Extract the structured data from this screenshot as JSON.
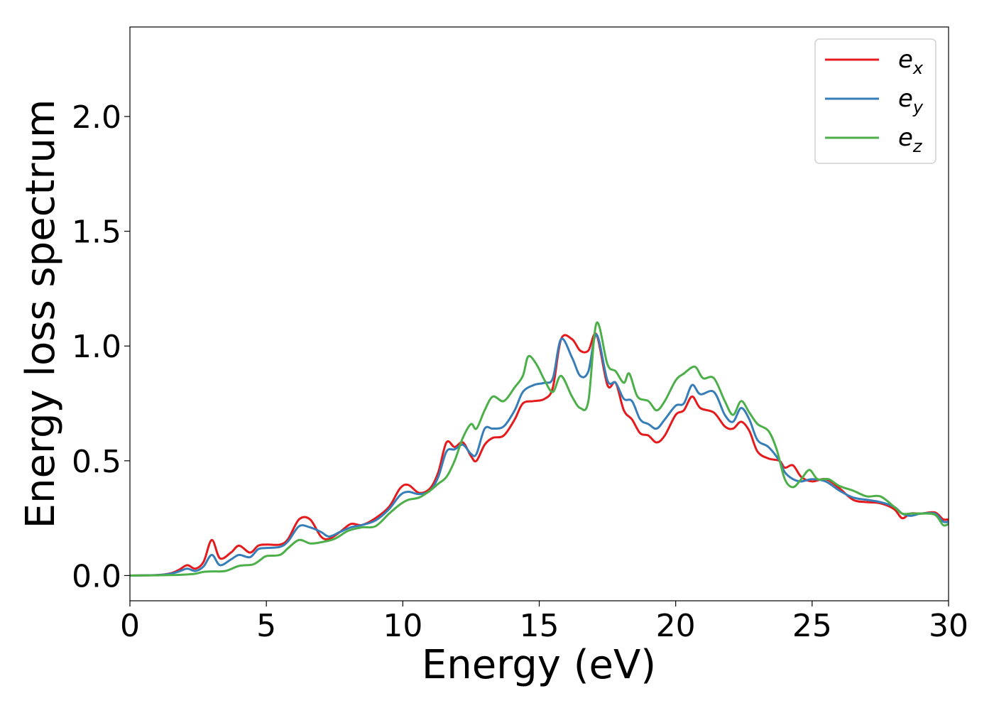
{
  "chart_data": {
    "type": "line",
    "title": "",
    "xlabel": "Energy (eV)",
    "ylabel": "Energy loss spectrum",
    "xlim": [
      0,
      30
    ],
    "ylim": [
      -0.11,
      2.39
    ],
    "xticks": [
      0,
      5,
      10,
      15,
      20,
      25,
      30
    ],
    "xtick_labels": [
      "0",
      "5",
      "10",
      "15",
      "20",
      "25",
      "30"
    ],
    "yticks": [
      0.0,
      0.5,
      1.0,
      1.5,
      2.0
    ],
    "ytick_labels": [
      "0.0",
      "0.5",
      "1.0",
      "1.5",
      "2.0"
    ],
    "grid": false,
    "legend_position": "top-right",
    "series": [
      {
        "name": "e",
        "subscript": "x",
        "color": "#e41a1c",
        "points": [
          [
            0,
            0
          ],
          [
            1,
            0.002
          ],
          [
            1.5,
            0.01
          ],
          [
            1.8,
            0.025
          ],
          [
            2.1,
            0.045
          ],
          [
            2.4,
            0.03
          ],
          [
            2.7,
            0.06
          ],
          [
            3.0,
            0.155
          ],
          [
            3.3,
            0.075
          ],
          [
            3.7,
            0.1
          ],
          [
            4.0,
            0.13
          ],
          [
            4.4,
            0.1
          ],
          [
            4.7,
            0.13
          ],
          [
            5.0,
            0.135
          ],
          [
            5.5,
            0.135
          ],
          [
            5.8,
            0.16
          ],
          [
            6.2,
            0.245
          ],
          [
            6.6,
            0.245
          ],
          [
            7.0,
            0.17
          ],
          [
            7.3,
            0.16
          ],
          [
            7.7,
            0.19
          ],
          [
            8.1,
            0.225
          ],
          [
            8.5,
            0.22
          ],
          [
            9.0,
            0.25
          ],
          [
            9.5,
            0.3
          ],
          [
            9.9,
            0.38
          ],
          [
            10.2,
            0.395
          ],
          [
            10.6,
            0.36
          ],
          [
            11.0,
            0.38
          ],
          [
            11.3,
            0.45
          ],
          [
            11.6,
            0.58
          ],
          [
            11.9,
            0.56
          ],
          [
            12.2,
            0.58
          ],
          [
            12.5,
            0.52
          ],
          [
            12.7,
            0.5
          ],
          [
            13.0,
            0.57
          ],
          [
            13.3,
            0.6
          ],
          [
            13.7,
            0.61
          ],
          [
            14.1,
            0.68
          ],
          [
            14.4,
            0.75
          ],
          [
            14.8,
            0.76
          ],
          [
            15.2,
            0.77
          ],
          [
            15.5,
            0.82
          ],
          [
            15.8,
            1.03
          ],
          [
            16.2,
            1.03
          ],
          [
            16.5,
            0.98
          ],
          [
            16.8,
            0.98
          ],
          [
            17.1,
            1.05
          ],
          [
            17.5,
            0.83
          ],
          [
            17.8,
            0.84
          ],
          [
            18.1,
            0.72
          ],
          [
            18.4,
            0.68
          ],
          [
            18.7,
            0.62
          ],
          [
            19.0,
            0.61
          ],
          [
            19.3,
            0.58
          ],
          [
            19.6,
            0.61
          ],
          [
            20.0,
            0.7
          ],
          [
            20.3,
            0.72
          ],
          [
            20.6,
            0.78
          ],
          [
            20.9,
            0.73
          ],
          [
            21.4,
            0.71
          ],
          [
            21.8,
            0.65
          ],
          [
            22.1,
            0.64
          ],
          [
            22.4,
            0.67
          ],
          [
            22.7,
            0.63
          ],
          [
            23.0,
            0.54
          ],
          [
            23.4,
            0.51
          ],
          [
            23.8,
            0.5
          ],
          [
            24.0,
            0.47
          ],
          [
            24.3,
            0.48
          ],
          [
            24.6,
            0.43
          ],
          [
            25.0,
            0.41
          ],
          [
            25.5,
            0.42
          ],
          [
            26.0,
            0.38
          ],
          [
            26.5,
            0.33
          ],
          [
            27.0,
            0.32
          ],
          [
            27.5,
            0.315
          ],
          [
            28.0,
            0.29
          ],
          [
            28.3,
            0.25
          ],
          [
            28.6,
            0.27
          ],
          [
            29.0,
            0.27
          ],
          [
            29.5,
            0.275
          ],
          [
            29.8,
            0.245
          ],
          [
            30.0,
            0.245
          ]
        ]
      },
      {
        "name": "e",
        "subscript": "y",
        "color": "#377eb8",
        "points": [
          [
            0,
            0
          ],
          [
            1,
            0.002
          ],
          [
            1.5,
            0.008
          ],
          [
            1.8,
            0.018
          ],
          [
            2.1,
            0.03
          ],
          [
            2.4,
            0.02
          ],
          [
            2.7,
            0.04
          ],
          [
            3.0,
            0.09
          ],
          [
            3.3,
            0.045
          ],
          [
            3.7,
            0.07
          ],
          [
            4.0,
            0.09
          ],
          [
            4.4,
            0.08
          ],
          [
            4.7,
            0.115
          ],
          [
            5.0,
            0.12
          ],
          [
            5.5,
            0.125
          ],
          [
            5.8,
            0.15
          ],
          [
            6.2,
            0.215
          ],
          [
            6.6,
            0.21
          ],
          [
            7.0,
            0.19
          ],
          [
            7.3,
            0.17
          ],
          [
            7.7,
            0.19
          ],
          [
            8.1,
            0.21
          ],
          [
            8.5,
            0.22
          ],
          [
            9.0,
            0.24
          ],
          [
            9.5,
            0.29
          ],
          [
            9.9,
            0.35
          ],
          [
            10.2,
            0.365
          ],
          [
            10.6,
            0.355
          ],
          [
            11.0,
            0.37
          ],
          [
            11.3,
            0.43
          ],
          [
            11.6,
            0.54
          ],
          [
            11.9,
            0.55
          ],
          [
            12.2,
            0.57
          ],
          [
            12.5,
            0.53
          ],
          [
            12.7,
            0.53
          ],
          [
            13.0,
            0.64
          ],
          [
            13.3,
            0.64
          ],
          [
            13.7,
            0.65
          ],
          [
            14.1,
            0.72
          ],
          [
            14.4,
            0.8
          ],
          [
            14.8,
            0.83
          ],
          [
            15.2,
            0.84
          ],
          [
            15.5,
            0.86
          ],
          [
            15.8,
            1.03
          ],
          [
            16.2,
            0.95
          ],
          [
            16.5,
            0.87
          ],
          [
            16.8,
            0.89
          ],
          [
            17.1,
            1.05
          ],
          [
            17.5,
            0.85
          ],
          [
            17.8,
            0.84
          ],
          [
            18.1,
            0.77
          ],
          [
            18.4,
            0.76
          ],
          [
            18.7,
            0.68
          ],
          [
            19.0,
            0.66
          ],
          [
            19.3,
            0.64
          ],
          [
            19.6,
            0.68
          ],
          [
            20.0,
            0.74
          ],
          [
            20.3,
            0.75
          ],
          [
            20.6,
            0.83
          ],
          [
            20.9,
            0.79
          ],
          [
            21.4,
            0.8
          ],
          [
            21.8,
            0.7
          ],
          [
            22.1,
            0.67
          ],
          [
            22.4,
            0.73
          ],
          [
            22.7,
            0.68
          ],
          [
            23.0,
            0.59
          ],
          [
            23.4,
            0.56
          ],
          [
            23.8,
            0.5
          ],
          [
            24.0,
            0.45
          ],
          [
            24.3,
            0.42
          ],
          [
            24.6,
            0.41
          ],
          [
            25.0,
            0.42
          ],
          [
            25.5,
            0.41
          ],
          [
            26.0,
            0.37
          ],
          [
            26.5,
            0.34
          ],
          [
            27.0,
            0.33
          ],
          [
            27.5,
            0.32
          ],
          [
            28.0,
            0.3
          ],
          [
            28.3,
            0.27
          ],
          [
            28.6,
            0.26
          ],
          [
            29.0,
            0.27
          ],
          [
            29.5,
            0.27
          ],
          [
            29.8,
            0.235
          ],
          [
            30.0,
            0.235
          ]
        ]
      },
      {
        "name": "e",
        "subscript": "z",
        "color": "#4daf4a",
        "points": [
          [
            0,
            0
          ],
          [
            1,
            0.001
          ],
          [
            1.5,
            0.002
          ],
          [
            2.0,
            0.004
          ],
          [
            2.4,
            0.008
          ],
          [
            2.7,
            0.016
          ],
          [
            3.0,
            0.018
          ],
          [
            3.5,
            0.02
          ],
          [
            4.0,
            0.042
          ],
          [
            4.5,
            0.048
          ],
          [
            4.8,
            0.07
          ],
          [
            5.0,
            0.085
          ],
          [
            5.5,
            0.09
          ],
          [
            5.8,
            0.12
          ],
          [
            6.2,
            0.155
          ],
          [
            6.6,
            0.14
          ],
          [
            7.0,
            0.145
          ],
          [
            7.5,
            0.16
          ],
          [
            8.0,
            0.195
          ],
          [
            8.5,
            0.21
          ],
          [
            9.0,
            0.215
          ],
          [
            9.5,
            0.27
          ],
          [
            9.9,
            0.31
          ],
          [
            10.2,
            0.33
          ],
          [
            10.6,
            0.34
          ],
          [
            11.0,
            0.37
          ],
          [
            11.3,
            0.4
          ],
          [
            11.6,
            0.43
          ],
          [
            11.9,
            0.5
          ],
          [
            12.2,
            0.6
          ],
          [
            12.5,
            0.66
          ],
          [
            12.7,
            0.64
          ],
          [
            13.0,
            0.72
          ],
          [
            13.3,
            0.78
          ],
          [
            13.7,
            0.76
          ],
          [
            14.1,
            0.82
          ],
          [
            14.4,
            0.87
          ],
          [
            14.6,
            0.955
          ],
          [
            14.9,
            0.92
          ],
          [
            15.2,
            0.85
          ],
          [
            15.5,
            0.8
          ],
          [
            15.8,
            0.87
          ],
          [
            16.2,
            0.78
          ],
          [
            16.5,
            0.73
          ],
          [
            16.8,
            0.76
          ],
          [
            17.1,
            1.1
          ],
          [
            17.5,
            0.92
          ],
          [
            17.8,
            0.89
          ],
          [
            18.1,
            0.84
          ],
          [
            18.3,
            0.88
          ],
          [
            18.6,
            0.78
          ],
          [
            19.0,
            0.76
          ],
          [
            19.3,
            0.72
          ],
          [
            19.6,
            0.76
          ],
          [
            20.0,
            0.85
          ],
          [
            20.3,
            0.88
          ],
          [
            20.7,
            0.91
          ],
          [
            21.0,
            0.86
          ],
          [
            21.4,
            0.86
          ],
          [
            21.8,
            0.76
          ],
          [
            22.1,
            0.7
          ],
          [
            22.4,
            0.76
          ],
          [
            22.7,
            0.71
          ],
          [
            23.0,
            0.66
          ],
          [
            23.4,
            0.63
          ],
          [
            23.7,
            0.55
          ],
          [
            24.0,
            0.42
          ],
          [
            24.3,
            0.385
          ],
          [
            24.6,
            0.42
          ],
          [
            24.9,
            0.46
          ],
          [
            25.2,
            0.42
          ],
          [
            25.6,
            0.42
          ],
          [
            26.0,
            0.39
          ],
          [
            26.5,
            0.37
          ],
          [
            27.0,
            0.345
          ],
          [
            27.5,
            0.345
          ],
          [
            28.0,
            0.3
          ],
          [
            28.3,
            0.27
          ],
          [
            28.6,
            0.27
          ],
          [
            29.0,
            0.27
          ],
          [
            29.5,
            0.265
          ],
          [
            29.8,
            0.22
          ],
          [
            30.0,
            0.225
          ]
        ]
      }
    ]
  }
}
